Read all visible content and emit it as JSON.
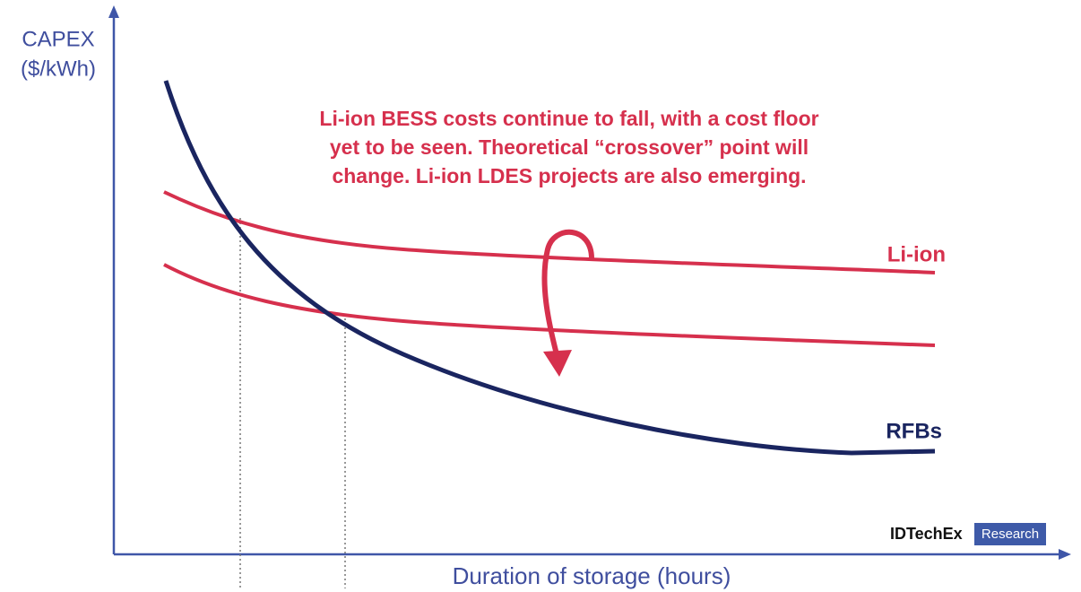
{
  "axes": {
    "y_label": [
      "CAPEX",
      "($/kWh)"
    ],
    "x_label": "Duration of storage (hours)"
  },
  "annotation": [
    "Li-ion BESS costs continue to fall, with a cost floor",
    "yet to be seen. Theoretical “crossover” point will",
    "change. Li-ion LDES projects are also emerging."
  ],
  "curve_labels": [
    "Li-ion",
    "RFBs"
  ],
  "logo": {
    "name": "IDTechEx",
    "tag": "Research"
  }
}
